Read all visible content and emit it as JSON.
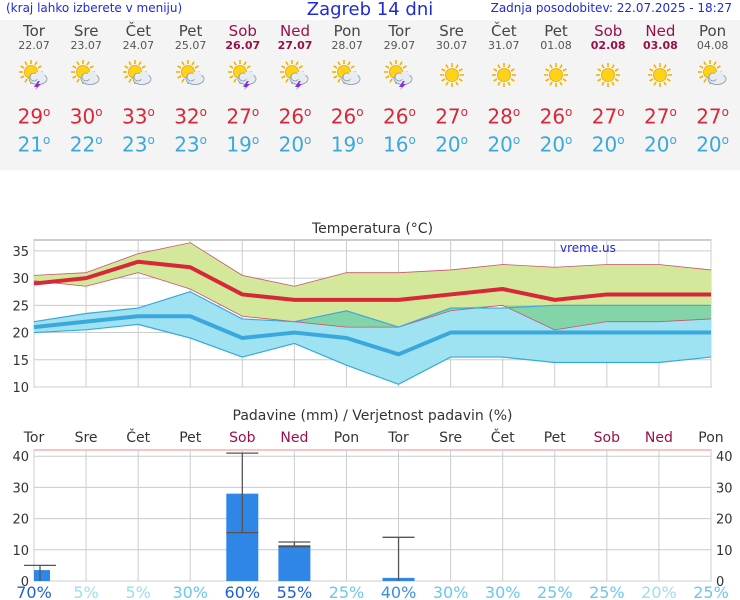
{
  "header": {
    "menu_hint": "(kraj lahko izberete v meniju)",
    "title": "Zagreb 14 dni",
    "updated": "Zadnja posodobitev: 22.07.2025 - 18:27"
  },
  "days": [
    {
      "name": "Tor",
      "date": "22.07",
      "weekend": false,
      "icon": "sun-cloud-thunder-icon",
      "max": "29",
      "min": "21"
    },
    {
      "name": "Sre",
      "date": "23.07",
      "weekend": false,
      "icon": "sun-cloud-icon",
      "max": "30",
      "min": "22"
    },
    {
      "name": "Čet",
      "date": "24.07",
      "weekend": false,
      "icon": "sun-cloud-icon",
      "max": "33",
      "min": "23"
    },
    {
      "name": "Pet",
      "date": "25.07",
      "weekend": false,
      "icon": "sun-cloud-icon",
      "max": "32",
      "min": "23"
    },
    {
      "name": "Sob",
      "date": "26.07",
      "weekend": true,
      "icon": "sun-cloud-thunder-icon",
      "max": "27",
      "min": "19"
    },
    {
      "name": "Ned",
      "date": "27.07",
      "weekend": true,
      "icon": "sun-cloud-thunder-icon",
      "max": "26",
      "min": "20"
    },
    {
      "name": "Pon",
      "date": "28.07",
      "weekend": false,
      "icon": "sun-cloud-icon",
      "max": "26",
      "min": "19"
    },
    {
      "name": "Tor",
      "date": "29.07",
      "weekend": false,
      "icon": "sun-cloud-thunder-icon",
      "max": "26",
      "min": "16"
    },
    {
      "name": "Sre",
      "date": "30.07",
      "weekend": false,
      "icon": "sun-icon",
      "max": "27",
      "min": "20"
    },
    {
      "name": "Čet",
      "date": "31.07",
      "weekend": false,
      "icon": "sun-icon",
      "max": "28",
      "min": "20"
    },
    {
      "name": "Pet",
      "date": "01.08",
      "weekend": false,
      "icon": "sun-icon",
      "max": "26",
      "min": "20"
    },
    {
      "name": "Sob",
      "date": "02.08",
      "weekend": true,
      "icon": "sun-icon",
      "max": "27",
      "min": "20"
    },
    {
      "name": "Ned",
      "date": "03.08",
      "weekend": true,
      "icon": "sun-icon",
      "max": "27",
      "min": "20"
    },
    {
      "name": "Pon",
      "date": "04.08",
      "weekend": false,
      "icon": "sun-cloud-icon",
      "max": "27",
      "min": "20"
    }
  ],
  "colors": {
    "header_text": "#1e2bd9",
    "weekend": "#9a0f4a",
    "max_line": "#d62839",
    "min_line": "#3aa8dc",
    "max_band": "#d3e89a",
    "min_band": "#9fe3f2",
    "overlap_band": "#7fd19c",
    "bar": "#2f86e6",
    "grid": "#cccccc"
  },
  "chart_data": [
    {
      "type": "line",
      "title": "Temperatura (°C)",
      "watermark": "vreme.us",
      "ylim": [
        10,
        37
      ],
      "yticks": [
        10,
        15,
        20,
        25,
        30,
        35
      ],
      "grid": true,
      "series": [
        {
          "name": "max",
          "values": [
            29,
            30,
            33,
            32,
            27,
            26,
            26,
            26,
            27,
            28,
            26,
            27,
            27,
            27
          ],
          "band_high": [
            30.5,
            31,
            34.5,
            36.5,
            30.5,
            28.5,
            31,
            31,
            31.5,
            32.5,
            32,
            32.5,
            32.5,
            31.5
          ],
          "band_low": [
            29.5,
            28.5,
            31,
            28,
            23,
            22,
            21,
            21,
            24,
            25,
            20.5,
            22,
            22,
            22.5
          ]
        },
        {
          "name": "min",
          "values": [
            21,
            22,
            23,
            23,
            19,
            20,
            19,
            16,
            20,
            20,
            20,
            20,
            20,
            20
          ],
          "band_high": [
            22,
            23.5,
            24.5,
            27.5,
            22.5,
            22,
            24,
            21,
            24.5,
            24.5,
            25,
            25,
            25,
            25
          ],
          "band_low": [
            20,
            20.5,
            21.5,
            19,
            15.5,
            18,
            14,
            10.5,
            15.5,
            15.5,
            14.5,
            14.5,
            14.5,
            15.5
          ]
        }
      ]
    },
    {
      "type": "bar",
      "title": "Padavine (mm) / Verjetnost padavin (%)",
      "ylim": [
        0,
        42
      ],
      "yticks": [
        0,
        10,
        20,
        30,
        40
      ],
      "categories": [
        "Tor",
        "Sre",
        "Čet",
        "Pet",
        "Sob",
        "Ned",
        "Pon",
        "Tor",
        "Sre",
        "Čet",
        "Pet",
        "Sob",
        "Ned",
        "Pon"
      ],
      "weekend": [
        false,
        false,
        false,
        false,
        true,
        true,
        false,
        false,
        false,
        false,
        false,
        true,
        true,
        false
      ],
      "values": [
        3.5,
        0,
        0,
        0,
        28,
        11.5,
        0,
        1,
        0,
        0,
        0,
        0,
        0,
        0
      ],
      "err_low": [
        0,
        0,
        0,
        0,
        15.5,
        11,
        0,
        0,
        0,
        0,
        0,
        0,
        0,
        0
      ],
      "err_high": [
        5,
        0,
        0,
        0,
        41,
        12.5,
        0,
        14,
        0,
        0,
        0,
        0,
        0,
        0
      ],
      "probability": [
        "70%",
        "5%",
        "5%",
        "30%",
        "60%",
        "55%",
        "25%",
        "40%",
        "30%",
        "30%",
        "25%",
        "25%",
        "20%",
        "25%"
      ],
      "prob_values": [
        70,
        5,
        5,
        30,
        60,
        55,
        25,
        40,
        30,
        30,
        25,
        25,
        20,
        25
      ]
    }
  ]
}
